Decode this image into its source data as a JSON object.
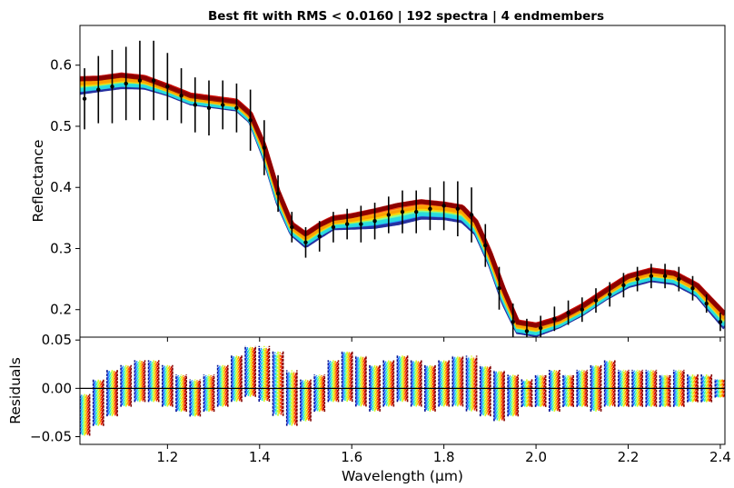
{
  "chart_data": [
    {
      "type": "line",
      "title": "Best fit with RMS < 0.0160 | 192 spectra | 4 endmembers",
      "xlabel": "",
      "ylabel": "Reflectance",
      "xlim": [
        1.01,
        2.41
      ],
      "ylim": [
        0.155,
        0.665
      ],
      "grid": false,
      "x_ticks": [
        1.2,
        1.4,
        1.6,
        1.8,
        2.0,
        2.2,
        2.4
      ],
      "y_ticks": [
        0.2,
        0.3,
        0.4,
        0.5,
        0.6
      ],
      "y_tick_labels": [
        "0.2",
        "0.3",
        "0.4",
        "0.5",
        "0.6"
      ],
      "observed": {
        "x": [
          1.02,
          1.05,
          1.08,
          1.11,
          1.14,
          1.17,
          1.2,
          1.23,
          1.26,
          1.29,
          1.32,
          1.35,
          1.38,
          1.41,
          1.44,
          1.47,
          1.5,
          1.53,
          1.56,
          1.59,
          1.62,
          1.65,
          1.68,
          1.71,
          1.74,
          1.77,
          1.8,
          1.83,
          1.86,
          1.89,
          1.92,
          1.95,
          1.98,
          2.01,
          2.04,
          2.07,
          2.1,
          2.13,
          2.16,
          2.19,
          2.22,
          2.25,
          2.28,
          2.31,
          2.34,
          2.37,
          2.4
        ],
        "y": [
          0.545,
          0.56,
          0.565,
          0.57,
          0.575,
          0.575,
          0.565,
          0.55,
          0.535,
          0.53,
          0.535,
          0.53,
          0.51,
          0.465,
          0.39,
          0.335,
          0.31,
          0.32,
          0.335,
          0.34,
          0.34,
          0.345,
          0.355,
          0.36,
          0.36,
          0.365,
          0.37,
          0.365,
          0.355,
          0.305,
          0.235,
          0.18,
          0.165,
          0.17,
          0.185,
          0.195,
          0.2,
          0.215,
          0.225,
          0.24,
          0.25,
          0.255,
          0.255,
          0.25,
          0.235,
          0.21,
          0.18
        ],
        "err": [
          0.05,
          0.055,
          0.06,
          0.06,
          0.065,
          0.065,
          0.055,
          0.045,
          0.045,
          0.045,
          0.04,
          0.04,
          0.05,
          0.045,
          0.03,
          0.025,
          0.025,
          0.025,
          0.025,
          0.025,
          0.03,
          0.03,
          0.03,
          0.035,
          0.035,
          0.035,
          0.04,
          0.045,
          0.045,
          0.035,
          0.035,
          0.03,
          0.02,
          0.02,
          0.02,
          0.02,
          0.02,
          0.02,
          0.02,
          0.02,
          0.02,
          0.02,
          0.02,
          0.02,
          0.02,
          0.015,
          0.015
        ]
      },
      "model_band": {
        "x": [
          1.01,
          1.05,
          1.1,
          1.15,
          1.2,
          1.25,
          1.3,
          1.35,
          1.38,
          1.41,
          1.44,
          1.47,
          1.5,
          1.53,
          1.56,
          1.6,
          1.65,
          1.7,
          1.75,
          1.8,
          1.84,
          1.87,
          1.9,
          1.93,
          1.96,
          2.0,
          2.05,
          2.1,
          2.15,
          2.2,
          2.25,
          2.3,
          2.35,
          2.41
        ],
        "upper": [
          0.585,
          0.585,
          0.59,
          0.585,
          0.57,
          0.555,
          0.55,
          0.545,
          0.525,
          0.475,
          0.4,
          0.345,
          0.33,
          0.345,
          0.355,
          0.36,
          0.37,
          0.38,
          0.385,
          0.38,
          0.375,
          0.35,
          0.3,
          0.24,
          0.185,
          0.18,
          0.19,
          0.21,
          0.235,
          0.26,
          0.27,
          0.265,
          0.245,
          0.2
        ],
        "lower": [
          0.55,
          0.555,
          0.56,
          0.56,
          0.55,
          0.535,
          0.53,
          0.525,
          0.505,
          0.445,
          0.37,
          0.32,
          0.3,
          0.315,
          0.33,
          0.33,
          0.33,
          0.335,
          0.345,
          0.345,
          0.34,
          0.32,
          0.27,
          0.205,
          0.16,
          0.155,
          0.17,
          0.19,
          0.215,
          0.235,
          0.245,
          0.24,
          0.22,
          0.165
        ]
      }
    },
    {
      "type": "scatter",
      "xlabel": "Wavelength (µm)",
      "ylabel": "Residuals",
      "xlim": [
        1.01,
        2.41
      ],
      "ylim": [
        -0.058,
        0.053
      ],
      "grid": false,
      "x_ticks": [
        1.2,
        1.4,
        1.6,
        1.8,
        2.0,
        2.2,
        2.4
      ],
      "x_tick_labels": [
        "1.2",
        "1.4",
        "1.6",
        "1.8",
        "2.0",
        "2.2",
        "2.4"
      ],
      "y_ticks": [
        -0.05,
        0.0,
        0.05
      ],
      "y_tick_labels": [
        "−0.05",
        "0.00",
        "0.05"
      ],
      "zero_line": 0.0,
      "residual_range": {
        "x": [
          1.02,
          1.05,
          1.08,
          1.11,
          1.14,
          1.17,
          1.2,
          1.23,
          1.26,
          1.29,
          1.32,
          1.35,
          1.38,
          1.41,
          1.44,
          1.47,
          1.5,
          1.53,
          1.56,
          1.59,
          1.62,
          1.65,
          1.68,
          1.71,
          1.74,
          1.77,
          1.8,
          1.83,
          1.86,
          1.89,
          1.92,
          1.95,
          1.98,
          2.01,
          2.04,
          2.07,
          2.1,
          2.13,
          2.16,
          2.19,
          2.22,
          2.25,
          2.28,
          2.31,
          2.34,
          2.37,
          2.4
        ],
        "max": [
          -0.005,
          0.01,
          0.02,
          0.025,
          0.03,
          0.03,
          0.025,
          0.015,
          0.01,
          0.015,
          0.025,
          0.035,
          0.045,
          0.045,
          0.04,
          0.02,
          0.01,
          0.015,
          0.03,
          0.04,
          0.035,
          0.025,
          0.03,
          0.035,
          0.03,
          0.025,
          0.03,
          0.035,
          0.035,
          0.025,
          0.02,
          0.015,
          0.01,
          0.015,
          0.02,
          0.015,
          0.02,
          0.025,
          0.03,
          0.02,
          0.02,
          0.02,
          0.015,
          0.02,
          0.015,
          0.015,
          0.01
        ],
        "min": [
          -0.05,
          -0.04,
          -0.03,
          -0.02,
          -0.015,
          -0.015,
          -0.02,
          -0.025,
          -0.03,
          -0.025,
          -0.02,
          -0.015,
          -0.01,
          -0.015,
          -0.03,
          -0.04,
          -0.035,
          -0.025,
          -0.015,
          -0.015,
          -0.02,
          -0.025,
          -0.02,
          -0.015,
          -0.02,
          -0.025,
          -0.02,
          -0.02,
          -0.025,
          -0.03,
          -0.035,
          -0.03,
          -0.02,
          -0.02,
          -0.025,
          -0.02,
          -0.02,
          -0.025,
          -0.02,
          -0.02,
          -0.02,
          -0.02,
          -0.02,
          -0.02,
          -0.015,
          -0.015,
          -0.01
        ]
      }
    }
  ],
  "colors": {
    "observed": "#000000",
    "zero_line": "#000000",
    "palette": [
      "#000c8f",
      "#1f4fff",
      "#27a3ff",
      "#29e6d9",
      "#7dff80",
      "#cfff2a",
      "#ffd000",
      "#ff9500",
      "#ff3b00",
      "#c80000",
      "#800000"
    ]
  }
}
